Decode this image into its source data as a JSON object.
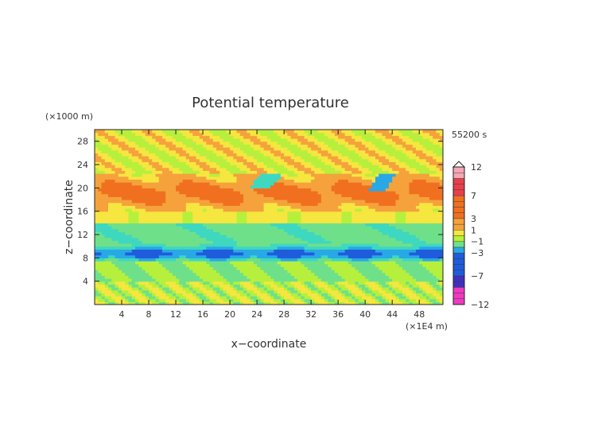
{
  "chart_data": {
    "type": "heatmap",
    "title": "Potential temperature",
    "xlabel": "x−coordinate",
    "ylabel": "z−coordinate",
    "x_unit": "(×1E4 m)",
    "y_unit": "(×1000 m)",
    "time_label": "55200 s",
    "xlim": [
      0,
      51.5
    ],
    "ylim": [
      0,
      30
    ],
    "x_ticks": [
      "4",
      "8",
      "12",
      "16",
      "20",
      "24",
      "28",
      "32",
      "36",
      "40",
      "44",
      "48"
    ],
    "y_ticks": [
      "4",
      "8",
      "12",
      "16",
      "20",
      "24",
      "28"
    ],
    "colorbar": {
      "levels": [
        -12,
        -11,
        -10,
        -9,
        -8,
        -7,
        -6,
        -5,
        -4,
        -3,
        -2,
        -1,
        0,
        1,
        2,
        3,
        4,
        5,
        6,
        7,
        8,
        9,
        10,
        11,
        12
      ],
      "labels": [
        "12",
        "7",
        "3",
        "1",
        "−1",
        "−3",
        "−7",
        "−12"
      ],
      "colors": {
        "pos_high": "#f4a7b4",
        "pos_7": "#e8404a",
        "pos_3": "#f07020",
        "pos_1": "#f5a23c",
        "pos_0": "#f5e640",
        "neg_0": "#b6f03c",
        "neg_1": "#6fe08a",
        "neg_2": "#3ed8c0",
        "neg_3": "#29a8e6",
        "neg_4": "#1f5cdc",
        "neg_7": "#4030c0",
        "neg_low": "#ee3ac0"
      }
    },
    "bands": [
      {
        "z_range": [
          0,
          4
        ],
        "value": "-1 to 1 (mixed yellow/green)"
      },
      {
        "z_range": [
          4,
          7.5
        ],
        "value": "-1 (green)"
      },
      {
        "z_range": [
          7.5,
          10.5
        ],
        "value": "-2 to -3 (cyan/blue)"
      },
      {
        "z_range": [
          10.5,
          14
        ],
        "value": "-1 to -2 (green/cyan)"
      },
      {
        "z_range": [
          14,
          16
        ],
        "value": "0 to 1 (yellow)"
      },
      {
        "z_range": [
          16,
          22
        ],
        "value": "2 to 4 (orange)"
      },
      {
        "z_range": [
          22,
          30
        ],
        "value": "0 to 1 (yellow/green)"
      }
    ]
  }
}
